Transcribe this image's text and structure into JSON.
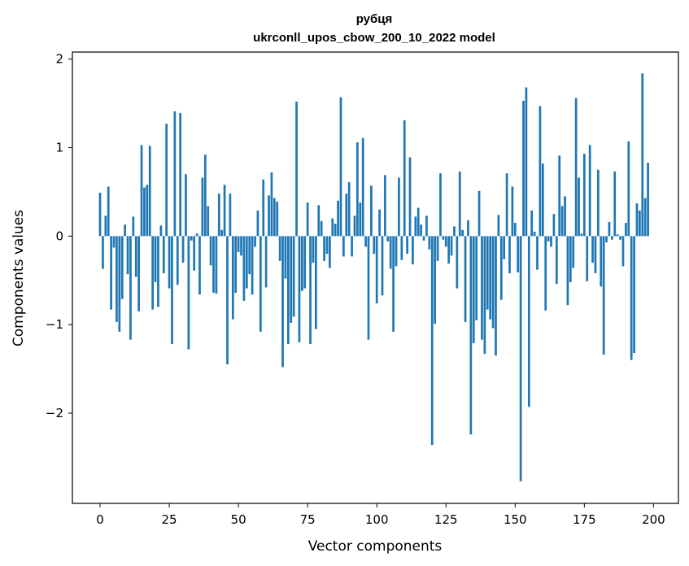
{
  "chart_data": {
    "type": "bar",
    "title": "рубця",
    "subtitle": "ukrconll_upos_cbow_200_10_2022 model",
    "xlabel": "Vector components",
    "ylabel": "Components values",
    "xlim": [
      -10,
      209
    ],
    "ylim": [
      -3.02,
      2.08
    ],
    "xticks": [
      0,
      25,
      50,
      75,
      100,
      125,
      150,
      175,
      200
    ],
    "yticks": [
      -2,
      -1,
      0,
      1,
      2
    ],
    "ytick_labels": [
      "−2",
      "−1",
      "0",
      "1",
      "2"
    ],
    "bar_color": "#1f77b4",
    "values": [
      0.49,
      -0.37,
      0.23,
      0.56,
      -0.83,
      -0.13,
      -0.97,
      -1.08,
      -0.71,
      0.13,
      -0.43,
      -1.17,
      0.22,
      -0.46,
      -0.85,
      1.03,
      0.55,
      0.58,
      1.02,
      -0.83,
      -0.52,
      -0.8,
      0.12,
      -0.42,
      1.27,
      -0.59,
      -1.22,
      1.41,
      -0.55,
      1.39,
      -0.3,
      0.7,
      -1.28,
      -0.05,
      -0.39,
      0.03,
      -0.66,
      0.66,
      0.92,
      0.34,
      -0.33,
      -0.64,
      -0.65,
      0.48,
      0.07,
      0.58,
      -1.45,
      0.48,
      -0.94,
      -0.64,
      -0.18,
      -0.22,
      -0.73,
      -0.59,
      -0.43,
      -0.66,
      -0.12,
      0.29,
      -1.08,
      0.64,
      -0.58,
      0.46,
      0.72,
      0.43,
      0.39,
      -0.28,
      -1.48,
      -0.48,
      -1.22,
      -0.98,
      -0.91,
      1.52,
      -1.2,
      -0.62,
      -0.59,
      0.38,
      -1.22,
      -0.3,
      -1.05,
      0.35,
      0.17,
      -0.28,
      -0.2,
      -0.36,
      0.2,
      0.14,
      0.4,
      1.57,
      -0.23,
      0.48,
      0.61,
      -0.23,
      0.23,
      1.06,
      0.38,
      1.11,
      -0.12,
      -1.17,
      0.57,
      -0.2,
      -0.76,
      0.3,
      -0.67,
      0.69,
      -0.06,
      -0.37,
      -1.08,
      -0.34,
      0.66,
      -0.27,
      1.31,
      -0.2,
      0.89,
      -0.32,
      0.22,
      0.32,
      0.13,
      -0.05,
      0.23,
      -0.15,
      -2.36,
      -0.99,
      -0.28,
      0.71,
      -0.04,
      -0.12,
      -0.31,
      -0.22,
      0.11,
      -0.59,
      0.73,
      0.07,
      -0.97,
      0.18,
      -2.24,
      -1.21,
      -0.95,
      0.51,
      -1.17,
      -1.33,
      -0.83,
      -0.94,
      -1.04,
      -1.35,
      0.24,
      -0.72,
      -0.26,
      0.71,
      -0.42,
      0.56,
      0.15,
      -0.41,
      -2.77,
      1.53,
      1.68,
      -1.93,
      0.29,
      0.05,
      -0.38,
      1.47,
      0.82,
      -0.84,
      -0.06,
      -0.12,
      0.25,
      -0.54,
      0.91,
      0.34,
      0.45,
      -0.78,
      -0.52,
      -0.36,
      1.56,
      0.66,
      0.03,
      0.93,
      -0.51,
      1.03,
      -0.3,
      -0.42,
      0.75,
      -0.57,
      -1.34,
      -0.07,
      0.16,
      -0.04,
      0.73,
      0.02,
      -0.04,
      -0.34,
      0.15,
      1.07,
      -1.4,
      -1.32,
      0.37,
      0.29,
      1.84,
      0.43,
      0.83
    ]
  }
}
